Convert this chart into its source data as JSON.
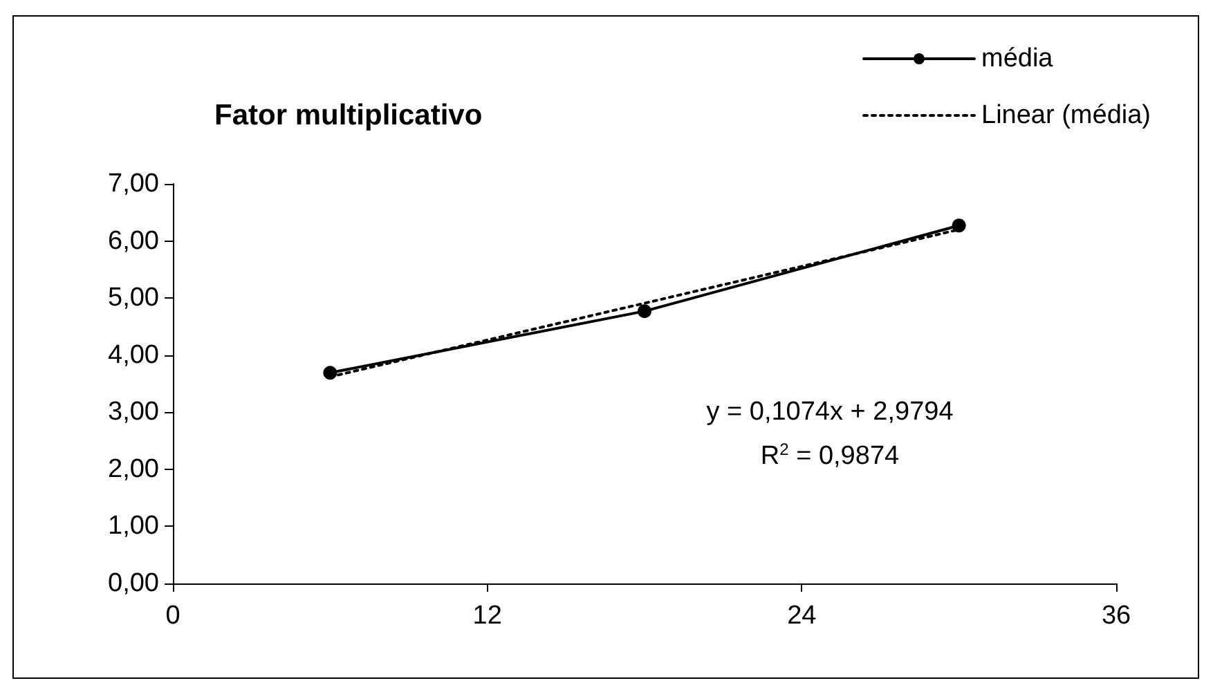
{
  "chart_data": {
    "type": "line",
    "title": "Fator multiplicativo",
    "series": [
      {
        "name": "média",
        "color": "#000000",
        "x": [
          6,
          18,
          30
        ],
        "values": [
          3.69,
          4.77,
          6.27
        ],
        "marker": "circle",
        "line_style": "solid"
      },
      {
        "name": "Linear (média)",
        "color": "#000000",
        "x": [
          6,
          30
        ],
        "values": [
          3.62,
          6.2
        ],
        "marker": "none",
        "line_style": "dotted"
      }
    ],
    "xlim": [
      0,
      36
    ],
    "xticks": [
      0,
      12,
      24,
      36
    ],
    "ylim": [
      0,
      7
    ],
    "yticks": [
      {
        "value": 0,
        "label": "0,00"
      },
      {
        "value": 1,
        "label": "1,00"
      },
      {
        "value": 2,
        "label": "2,00"
      },
      {
        "value": 3,
        "label": "3,00"
      },
      {
        "value": 4,
        "label": "4,00"
      },
      {
        "value": 5,
        "label": "5,00"
      },
      {
        "value": 6,
        "label": "6,00"
      },
      {
        "value": 7,
        "label": "7,00"
      }
    ],
    "annotations": [
      "y = 0,1074x + 2,9794",
      "R$^{2}$ = 0,9874"
    ],
    "grid": false,
    "legend": "top right"
  }
}
